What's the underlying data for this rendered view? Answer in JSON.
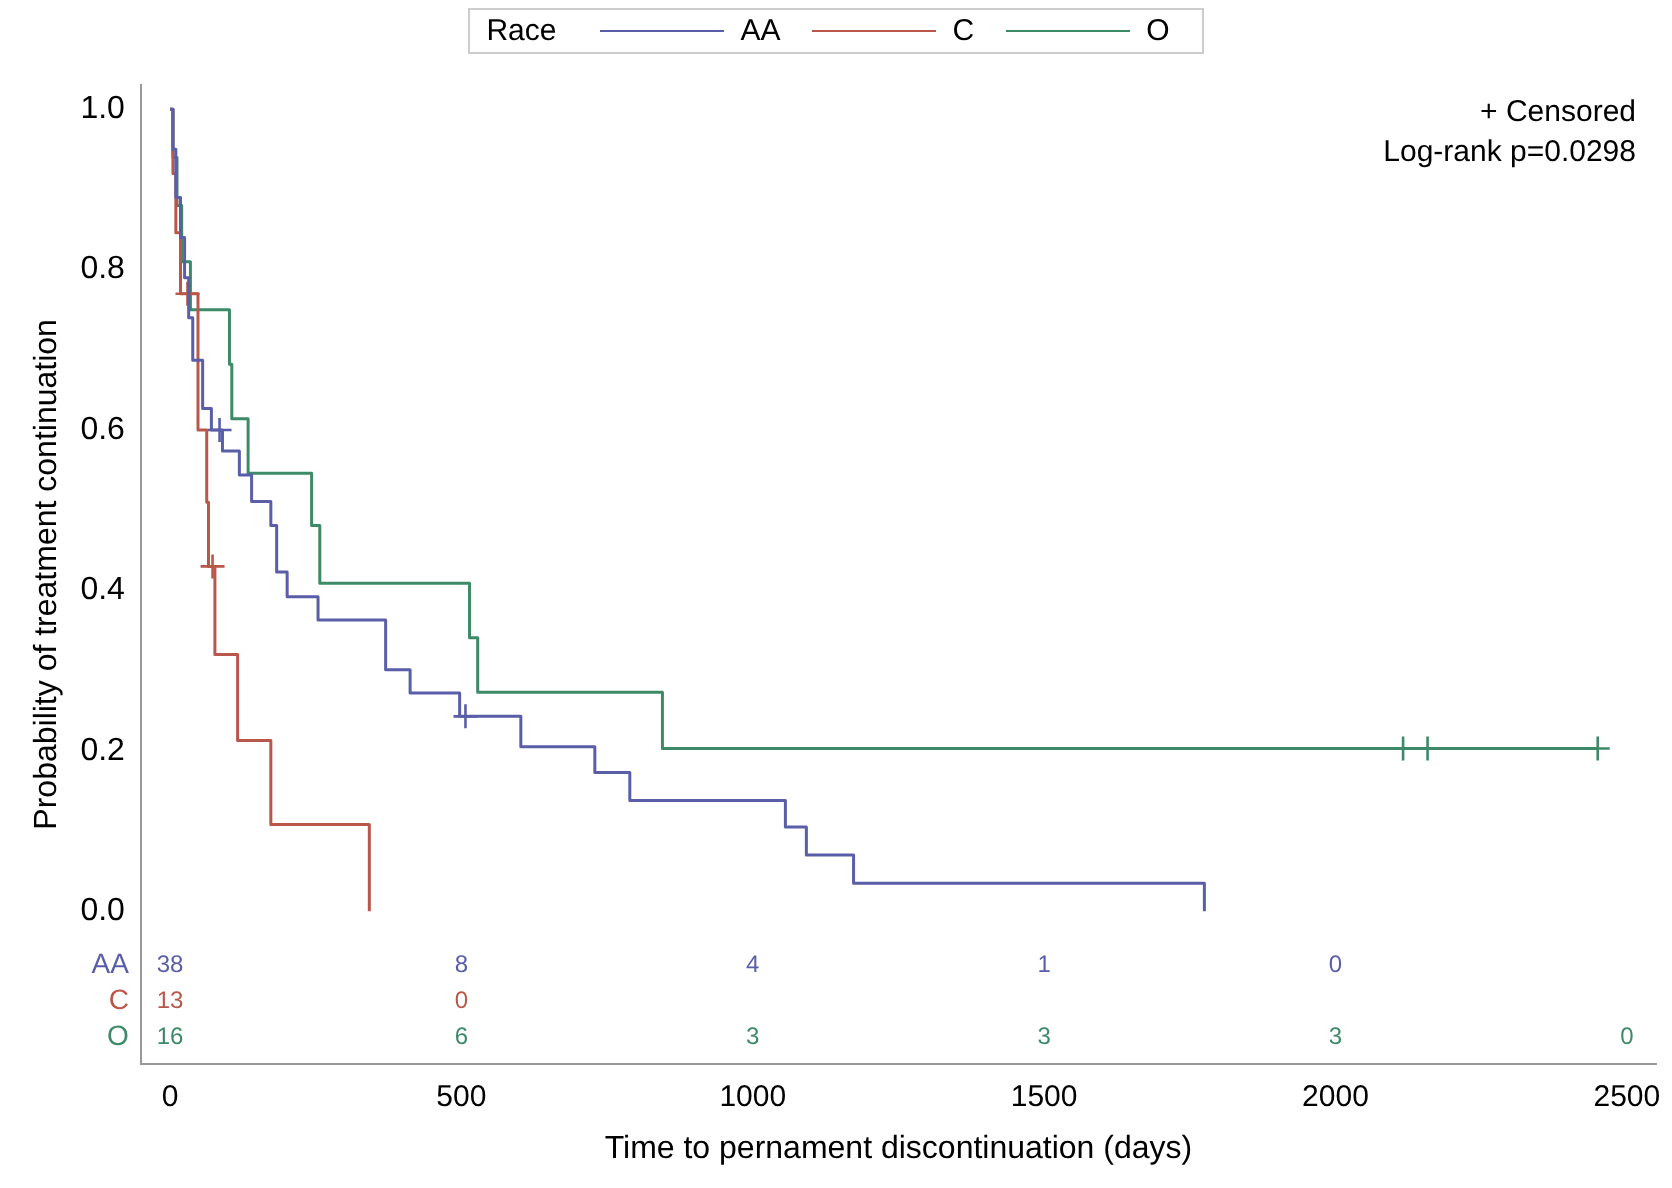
{
  "chart_data": {
    "type": "step",
    "xlabel": "Time to pernament discontinuation (days)",
    "ylabel": "Probability of treatment continuation",
    "legend_title": "Race",
    "legend": "top",
    "xlim": [
      -50,
      2550
    ],
    "xticks": [
      0,
      500,
      1000,
      1500,
      2000,
      2500
    ],
    "ylim": [
      -0.19,
      1.03
    ],
    "yticks": [
      {
        "value": 0,
        "label": "0.0"
      },
      {
        "value": 0.2,
        "label": "0.2"
      },
      {
        "value": 0.4,
        "label": "0.4"
      },
      {
        "value": 0.6,
        "label": "0.6"
      },
      {
        "value": 0.8,
        "label": "0.8"
      },
      {
        "value": 1,
        "label": "1.0"
      }
    ],
    "grid": false,
    "marker": "none",
    "line_style": "solid",
    "series": [
      {
        "name": "AA",
        "color": "#5a5ea8",
        "x": [
          0,
          5,
          10,
          18,
          25,
          32,
          39,
          56,
          71,
          90,
          119,
          140,
          173,
          183,
          201,
          254,
          370,
          412,
          497,
          602,
          729,
          789,
          1056,
          1092,
          1173,
          1775
        ],
        "values": [
          1,
          0.95,
          0.89,
          0.84,
          0.79,
          0.74,
          0.687,
          0.627,
          0.6,
          0.574,
          0.544,
          0.511,
          0.481,
          0.423,
          0.392,
          0.363,
          0.301,
          0.272,
          0.243,
          0.205,
          0.173,
          0.138,
          0.105,
          0.07,
          0.035,
          0
        ]
      },
      {
        "name": "C",
        "color": "#b8574a",
        "x": [
          0,
          5,
          10,
          18,
          48,
          63,
          66,
          77,
          116,
          173,
          342
        ],
        "values": [
          1,
          0.92,
          0.846,
          0.77,
          0.6,
          0.51,
          0.43,
          0.32,
          0.213,
          0.108,
          0
        ]
      },
      {
        "name": "O",
        "color": "#3d8a68",
        "x": [
          0,
          5,
          12,
          20,
          35,
          102,
          106,
          134,
          243,
          257,
          514,
          528,
          845,
          2450
        ],
        "values": [
          1,
          0.94,
          0.88,
          0.81,
          0.75,
          0.682,
          0.614,
          0.546,
          0.481,
          0.409,
          0.341,
          0.273,
          0.203,
          0.203
        ]
      },
      {
        "type": "scatter",
        "marker": "cross",
        "color": "#5a5ea8",
        "x": [
          85,
          507
        ],
        "values": [
          0.6,
          0.243
        ]
      },
      {
        "type": "scatter",
        "marker": "cross",
        "color": "#b8574a",
        "x": [
          30,
          73
        ],
        "values": [
          0.77,
          0.43
        ]
      },
      {
        "type": "scatter",
        "marker": "cross",
        "color": "#3d8a68",
        "x": [
          2116,
          2158,
          2450
        ],
        "values": [
          0.203,
          0.203,
          0.203
        ]
      }
    ],
    "annotations": [
      "+ Censored",
      "Log-rank p=0.0298",
      "AA 38 8 4 1 0",
      "C 13 0",
      "O 16 6 3 3 3 0"
    ]
  }
}
